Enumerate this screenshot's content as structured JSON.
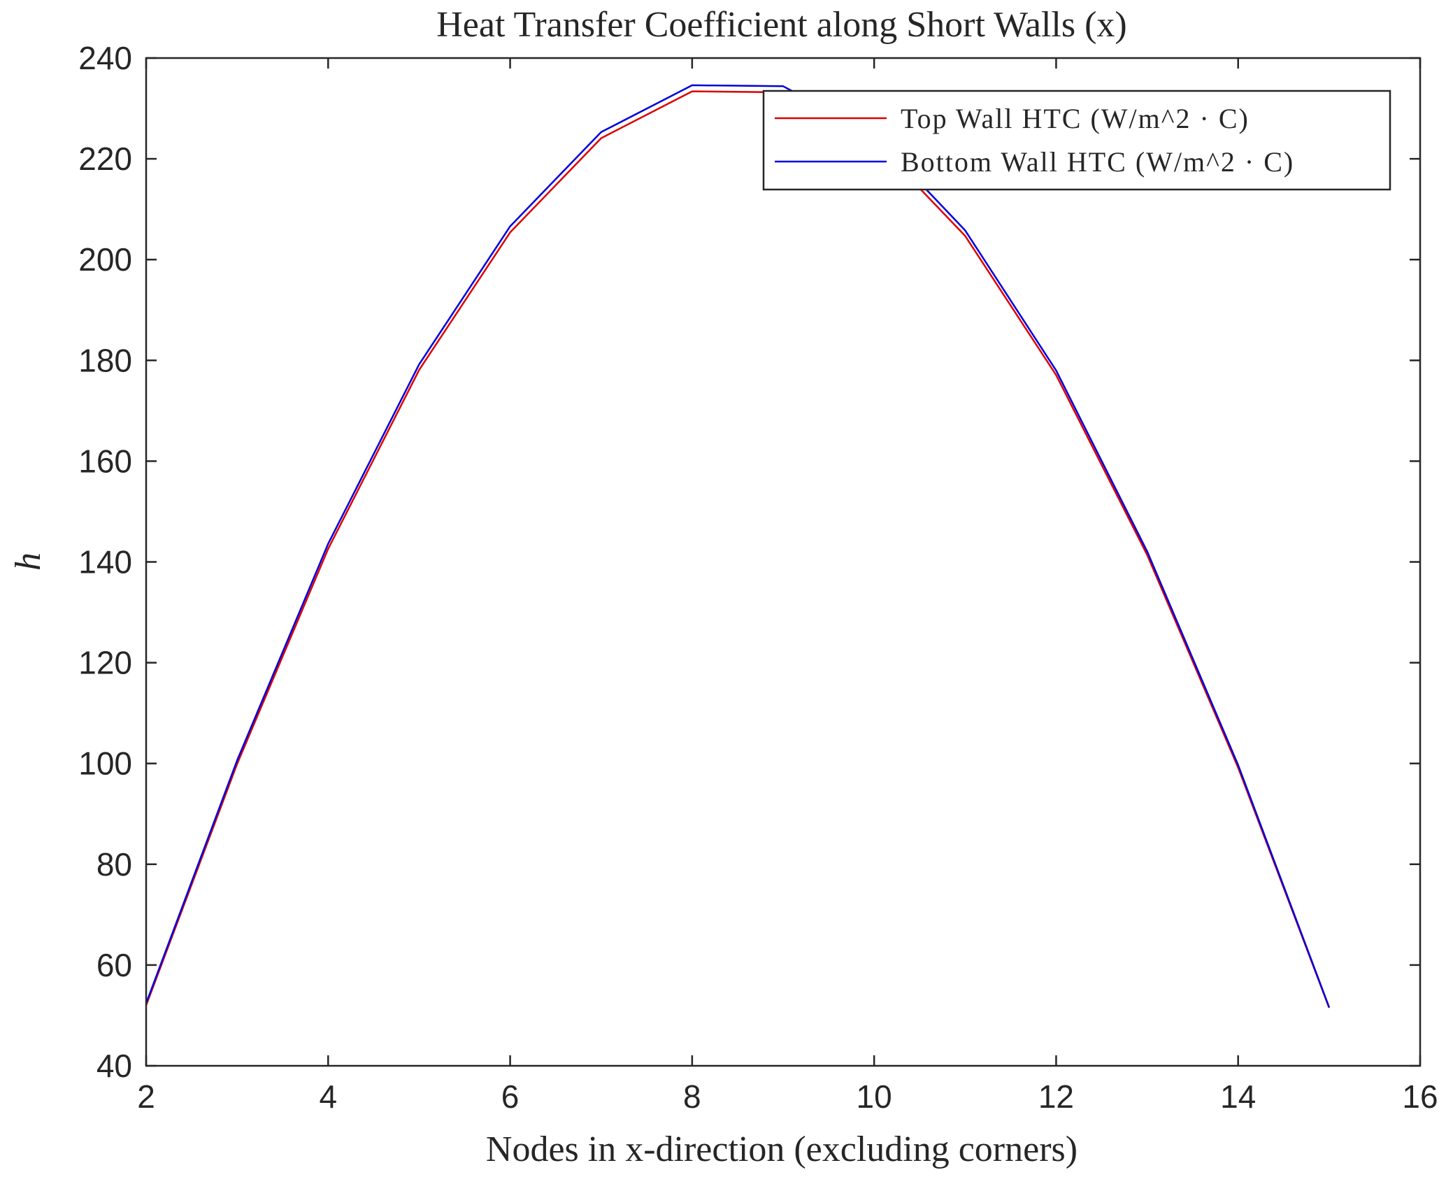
{
  "chart_data": {
    "type": "line",
    "title": "Heat Transfer Coefficient along Short Walls (x)",
    "xlabel": "Nodes in x-direction (excluding corners)",
    "ylabel": "h",
    "xlim": [
      2,
      16
    ],
    "ylim": [
      40,
      240
    ],
    "xticks": [
      2,
      4,
      6,
      8,
      10,
      12,
      14,
      16
    ],
    "yticks": [
      40,
      60,
      80,
      100,
      120,
      140,
      160,
      180,
      200,
      220,
      240
    ],
    "grid": false,
    "legend_position": "top-right",
    "x": [
      2,
      3,
      4,
      5,
      6,
      7,
      8,
      9,
      10,
      11,
      12,
      13,
      14,
      15
    ],
    "series": [
      {
        "name": "Top Wall HTC (W/m^2 · C)",
        "color": "#dd0000",
        "values": [
          52.0,
          99.9,
          142.6,
          178.1,
          205.4,
          224.1,
          233.4,
          233.2,
          223.6,
          204.7,
          177.1,
          141.4,
          99.2,
          51.5
        ]
      },
      {
        "name": "Bottom Wall HTC (W/m^2 · C)",
        "color": "#0000dd",
        "values": [
          52.4,
          100.6,
          143.6,
          179.2,
          206.6,
          225.3,
          234.6,
          234.4,
          224.8,
          205.8,
          178.0,
          142.1,
          99.7,
          51.6
        ]
      }
    ]
  }
}
